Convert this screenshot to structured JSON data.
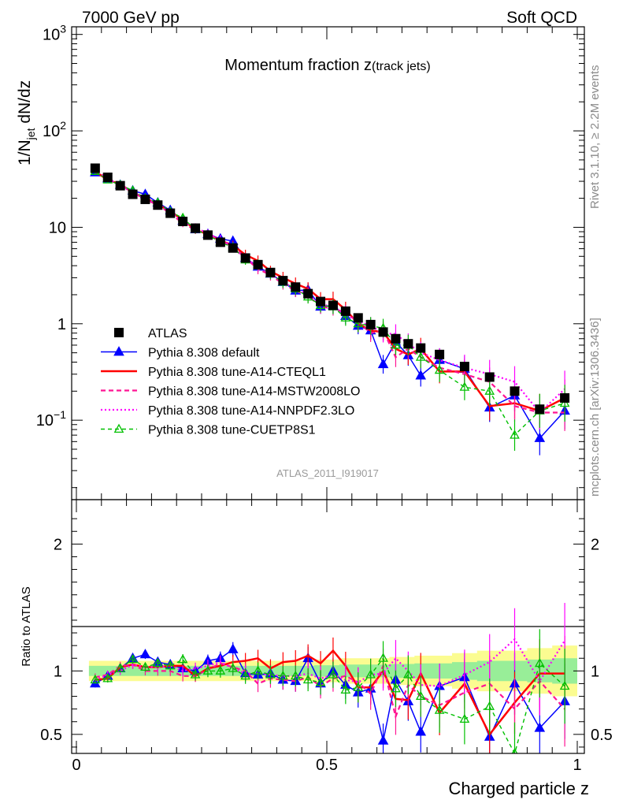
{
  "header": {
    "left": "7000 GeV pp",
    "right": "Soft QCD"
  },
  "side_notes": {
    "rivet": "Rivet 3.1.10, ≥ 2.2M events",
    "mcplots": "mcplots.cern.ch [arXiv:1306.3436]"
  },
  "chart_data": [
    {
      "type": "scatter",
      "title_main": "Momentum fraction z",
      "title_sub": "(track jets)",
      "analysis_label": "ATLAS_2011_I919017",
      "ylabel": "1/N_jet dN/dz",
      "yscale": "log",
      "ylim": [
        0.015,
        1200
      ],
      "xlim": [
        0,
        1
      ],
      "y_tick_labels": [
        "10^-1",
        "1",
        "10",
        "10^2",
        "10^3"
      ],
      "legend_position": "lower-left",
      "x": [
        0.0375,
        0.0625,
        0.0875,
        0.1125,
        0.1375,
        0.1625,
        0.1875,
        0.2125,
        0.2375,
        0.2625,
        0.2875,
        0.3125,
        0.3375,
        0.3625,
        0.3875,
        0.4125,
        0.4375,
        0.4625,
        0.4875,
        0.5125,
        0.5375,
        0.5625,
        0.5875,
        0.6125,
        0.6375,
        0.6625,
        0.6875,
        0.725,
        0.775,
        0.825,
        0.875,
        0.925,
        0.975
      ],
      "series": [
        {
          "name": "ATLAS",
          "color": "#000000",
          "style": "data",
          "values": [
            41,
            33,
            27,
            22,
            19.5,
            17,
            14,
            11.5,
            9.8,
            8.3,
            7.0,
            6.1,
            4.8,
            4.1,
            3.4,
            2.8,
            2.4,
            2.05,
            1.7,
            1.55,
            1.35,
            1.15,
            0.98,
            0.82,
            0.7,
            0.62,
            0.56,
            0.48,
            0.36,
            0.28,
            0.2,
            0.13,
            0.17
          ]
        },
        {
          "name": "Pythia 8.308 default",
          "color": "#0000ff",
          "style": "solid-triangle",
          "values": [
            37,
            32,
            27.5,
            24,
            22,
            18,
            15,
            11.7,
            9.5,
            8.5,
            7.6,
            7.2,
            4.8,
            3.9,
            3.3,
            2.7,
            2.2,
            2.25,
            1.5,
            1.55,
            1.2,
            0.95,
            0.85,
            0.38,
            0.65,
            0.47,
            0.29,
            0.42,
            0.34,
            0.135,
            0.18,
            0.065,
            0.125
          ]
        },
        {
          "name": "Pythia 8.308 tune-A14-CTEQL1",
          "color": "#ff0000",
          "style": "solid",
          "values": [
            38,
            31,
            28,
            23,
            20,
            17.5,
            14.5,
            12,
            9.4,
            8.5,
            7.3,
            6.5,
            5.2,
            4.5,
            3.5,
            3.0,
            2.6,
            2.3,
            1.8,
            1.8,
            1.4,
            1.0,
            0.85,
            0.82,
            0.55,
            0.48,
            0.55,
            0.32,
            0.32,
            0.14,
            0.15,
            0.125,
            0.17
          ]
        },
        {
          "name": "Pythia 8.308 tune-A14-MSTW2008LO",
          "color": "#ff1493",
          "style": "dashed",
          "values": [
            39,
            32,
            28,
            23,
            19.5,
            17,
            14,
            11,
            9.4,
            8.4,
            7.4,
            6.3,
            4.8,
            3.7,
            3.2,
            2.6,
            2.2,
            1.95,
            1.5,
            1.45,
            1.3,
            1.05,
            0.8,
            0.85,
            0.45,
            0.55,
            0.45,
            0.35,
            0.3,
            0.25,
            0.14,
            0.12,
            0.12
          ]
        },
        {
          "name": "Pythia 8.308 tune-A14-NNPDF2.3LO",
          "color": "#ff00ff",
          "style": "dotted",
          "values": [
            38,
            32,
            27,
            23,
            20,
            17.5,
            14.5,
            11.5,
            10,
            8.6,
            7.5,
            6.2,
            4.7,
            4.0,
            3.3,
            2.7,
            2.3,
            2.0,
            1.6,
            1.5,
            1.25,
            1.05,
            0.95,
            0.8,
            0.78,
            0.62,
            0.5,
            0.42,
            0.35,
            0.3,
            0.25,
            0.12,
            0.21
          ]
        },
        {
          "name": "Pythia 8.308 tune-CUETP8S1",
          "color": "#00c000",
          "style": "dashed-open-triangle",
          "values": [
            38,
            31,
            27.5,
            24,
            20,
            18,
            14.5,
            12.5,
            9.5,
            8.3,
            7.0,
            6.2,
            4.6,
            4.1,
            3.3,
            2.7,
            2.3,
            1.9,
            1.55,
            1.5,
            1.15,
            1.0,
            0.95,
            0.9,
            0.6,
            0.6,
            0.45,
            0.33,
            0.22,
            0.2,
            0.07,
            0.125,
            0.15
          ]
        }
      ]
    },
    {
      "type": "scatter",
      "ylabel": "Ratio to ATLAS",
      "xlabel": "Charged particle z",
      "ylim": [
        0.35,
        2.35
      ],
      "xlim": [
        0,
        1
      ],
      "x_tick_labels": [
        "0",
        "0.5",
        "1"
      ],
      "y_tick_labels": [
        "0.5",
        "1",
        "2"
      ],
      "band_inner_color": "#98ee98",
      "band_outer_color": "#fbfc91",
      "band_inner_halfwidth": [
        0.04,
        0.04,
        0.04,
        0.04,
        0.04,
        0.04,
        0.04,
        0.04,
        0.04,
        0.04,
        0.04,
        0.04,
        0.04,
        0.04,
        0.04,
        0.04,
        0.04,
        0.04,
        0.045,
        0.045,
        0.05,
        0.05,
        0.05,
        0.05,
        0.055,
        0.055,
        0.06,
        0.06,
        0.07,
        0.08,
        0.08,
        0.09,
        0.1
      ],
      "band_outer_halfwidth": [
        0.08,
        0.08,
        0.08,
        0.08,
        0.08,
        0.08,
        0.08,
        0.08,
        0.08,
        0.08,
        0.08,
        0.08,
        0.08,
        0.08,
        0.08,
        0.08,
        0.08,
        0.08,
        0.09,
        0.09,
        0.1,
        0.1,
        0.1,
        0.1,
        0.11,
        0.11,
        0.12,
        0.12,
        0.14,
        0.16,
        0.16,
        0.18,
        0.2
      ],
      "series": [
        {
          "name": "Pythia 8.308 default",
          "values": [
            0.9,
            0.96,
            1.02,
            1.1,
            1.13,
            1.07,
            1.05,
            1.02,
            1.0,
            1.08,
            1.1,
            1.17,
            0.98,
            0.97,
            0.98,
            0.93,
            0.92,
            1.1,
            0.9,
            1.0,
            0.89,
            0.83,
            0.86,
            0.45,
            0.93,
            0.76,
            0.52,
            0.88,
            0.95,
            0.48,
            0.9,
            0.55,
            0.76
          ]
        },
        {
          "name": "Pythia 8.308 tune-A14-CTEQL1",
          "values": [
            0.93,
            0.94,
            1.03,
            1.05,
            1.03,
            1.03,
            1.04,
            1.04,
            0.96,
            1.02,
            1.04,
            1.07,
            1.08,
            1.1,
            1.02,
            1.07,
            1.08,
            1.12,
            1.06,
            1.16,
            1.04,
            0.87,
            0.87,
            1.0,
            0.78,
            0.77,
            0.98,
            0.67,
            0.9,
            0.5,
            0.75,
            0.98,
            0.98
          ]
        },
        {
          "name": "Pythia 8.308 tune-A14-MSTW2008LO",
          "values": [
            0.95,
            0.97,
            1.04,
            1.05,
            1.0,
            1.0,
            1.0,
            0.96,
            0.96,
            1.01,
            1.06,
            1.03,
            1.0,
            0.9,
            0.94,
            0.93,
            0.92,
            0.95,
            0.88,
            0.94,
            0.96,
            0.91,
            0.82,
            1.04,
            0.64,
            0.89,
            0.8,
            0.73,
            0.83,
            0.9,
            0.7,
            0.92,
            0.7
          ]
        },
        {
          "name": "Pythia 8.308 tune-A14-NNPDF2.3LO",
          "values": [
            0.93,
            0.97,
            1.0,
            1.05,
            1.03,
            1.03,
            1.04,
            1.0,
            1.02,
            1.04,
            1.07,
            1.02,
            0.98,
            0.98,
            0.97,
            0.96,
            0.96,
            0.98,
            0.94,
            0.97,
            0.93,
            0.91,
            0.97,
            0.98,
            1.1,
            1.0,
            0.89,
            0.88,
            0.97,
            1.07,
            1.25,
            0.92,
            1.24
          ]
        },
        {
          "name": "Pythia 8.308 tune-CUETP8S1",
          "values": [
            0.93,
            0.94,
            1.02,
            1.09,
            1.03,
            1.06,
            1.04,
            1.09,
            0.97,
            1.0,
            1.0,
            1.02,
            0.96,
            1.0,
            0.97,
            0.96,
            0.96,
            0.93,
            0.91,
            0.97,
            0.85,
            0.87,
            0.97,
            1.1,
            0.86,
            0.97,
            0.8,
            0.69,
            0.62,
            0.72,
            0.35,
            1.06,
            0.88
          ]
        }
      ]
    }
  ]
}
